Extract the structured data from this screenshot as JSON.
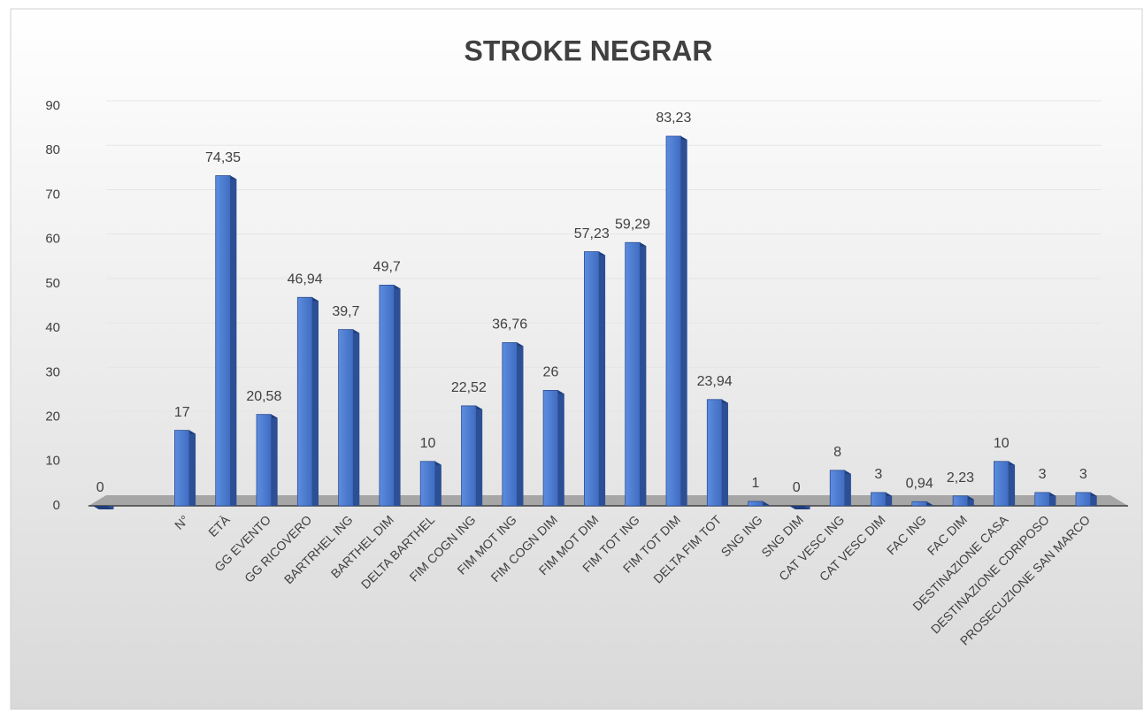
{
  "chart_data": {
    "type": "bar",
    "title": "STROKE NEGRAR",
    "categories": [
      null,
      null,
      "N°",
      "ETÀ",
      "GG EVENTO",
      "GG RICOVERO",
      "BARTRHEL ING",
      "BARTHEL DIM",
      "DELTA BARTHEL",
      "FIM COGN ING",
      "FIM MOT ING",
      "FIM COGN DIM",
      "FIM MOT DIM",
      "FIM TOT ING",
      "FIM TOT DIM",
      "DELTA FIM TOT",
      "SNG ING",
      "SNG DIM",
      "CAT VESC ING",
      "CAT VESC DIM",
      "FAC ING",
      "FAC DIM",
      "DESTINAZIONE CASA",
      "DESTINAZIONE CDRIPOSO",
      "PROSECUZIONE SAN MARCO"
    ],
    "values": [
      0,
      null,
      17,
      74.35,
      20.58,
      46.94,
      39.7,
      49.7,
      10,
      22.52,
      36.76,
      26,
      57.23,
      59.29,
      83.23,
      23.94,
      1,
      0,
      8,
      3,
      0.94,
      2.23,
      10,
      3,
      3
    ],
    "value_labels": [
      "0",
      null,
      "17",
      "74,35",
      "20,58",
      "46,94",
      "39,7",
      "49,7",
      "10",
      "22,52",
      "36,76",
      "26",
      "57,23",
      "59,29",
      "83,23",
      "23,94",
      "1",
      "0",
      "8",
      "3",
      "0,94",
      "2,23",
      "10",
      "3",
      "3"
    ],
    "color": "#4a7bd0",
    "ylim": [
      0,
      90
    ],
    "yticks": [
      0,
      10,
      20,
      30,
      40,
      50,
      60,
      70,
      80,
      90
    ],
    "grid": true
  }
}
